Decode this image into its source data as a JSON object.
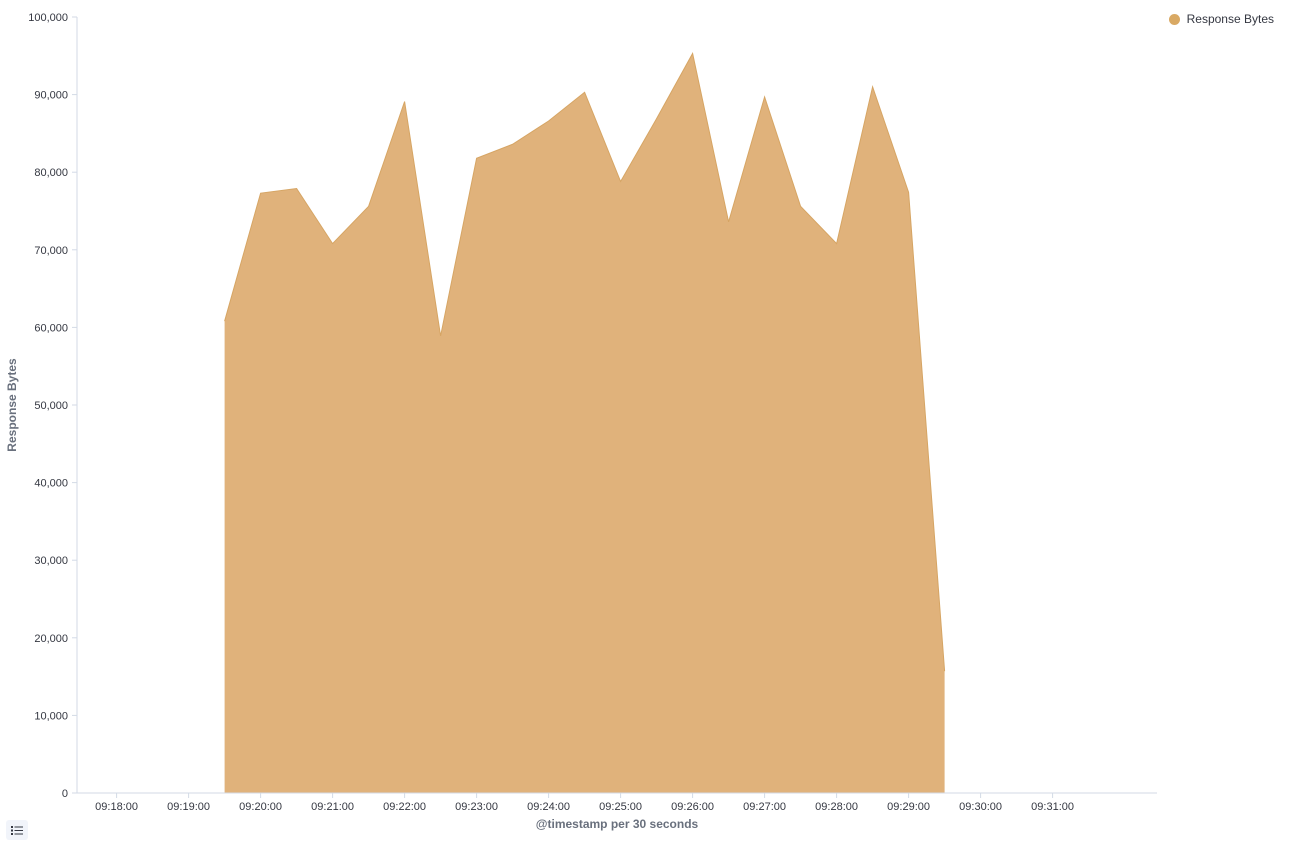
{
  "chart_data": {
    "type": "area",
    "xlabel": "@timestamp per 30 seconds",
    "ylabel": "Response Bytes",
    "color": "#e0b27b",
    "stroke": "#d6a564",
    "x_ticks": [
      "09:18:00",
      "09:19:00",
      "09:20:00",
      "09:21:00",
      "09:22:00",
      "09:23:00",
      "09:24:00",
      "09:25:00",
      "09:26:00",
      "09:27:00",
      "09:28:00",
      "09:29:00",
      "09:30:00",
      "09:31:00"
    ],
    "y_ticks": [
      0,
      10000,
      20000,
      30000,
      40000,
      50000,
      60000,
      70000,
      80000,
      90000,
      100000
    ],
    "y_tick_labels": [
      "0",
      "10,000",
      "20,000",
      "30,000",
      "40,000",
      "50,000",
      "60,000",
      "70,000",
      "80,000",
      "90,000",
      "100,000"
    ],
    "xlim": [
      "09:17:27",
      "09:32:27"
    ],
    "ylim": [
      0,
      100000
    ],
    "legend_position": "top-right",
    "series": [
      {
        "name": "Response Bytes",
        "x": [
          "09:19:30",
          "09:20:00",
          "09:20:30",
          "09:21:00",
          "09:21:30",
          "09:22:00",
          "09:22:30",
          "09:23:00",
          "09:23:30",
          "09:24:00",
          "09:24:30",
          "09:25:00",
          "09:25:30",
          "09:26:00",
          "09:26:30",
          "09:27:00",
          "09:27:30",
          "09:28:00",
          "09:28:30",
          "09:29:00",
          "09:29:30"
        ],
        "values": [
          60800,
          77300,
          77900,
          70800,
          75600,
          89100,
          58900,
          81800,
          83600,
          86600,
          90300,
          78800,
          86900,
          95300,
          73600,
          89700,
          75600,
          70800,
          91000,
          77400,
          15700
        ]
      }
    ]
  },
  "legend": {
    "label": "Response Bytes",
    "color": "#d9a964"
  },
  "toolbar": {
    "legend_toggle_icon": "list-icon"
  }
}
